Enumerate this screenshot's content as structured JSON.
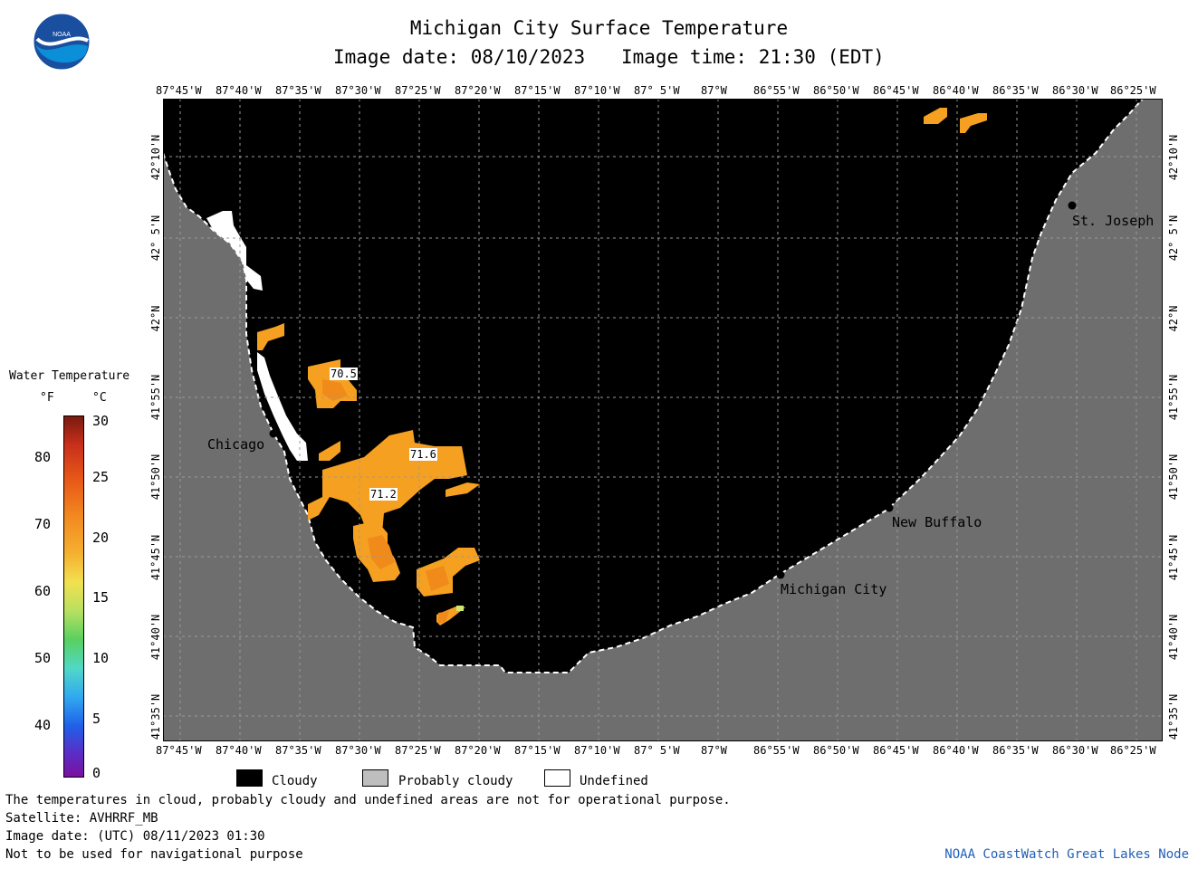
{
  "header": {
    "title": "Michigan City Surface Temperature",
    "image_date": "Image date: 08/10/2023",
    "image_time": "Image time: 21:30 (EDT)"
  },
  "logo": {
    "text": "NOAA"
  },
  "map": {
    "lon_ticks": [
      "87°45'W",
      "87°40'W",
      "87°35'W",
      "87°30'W",
      "87°25'W",
      "87°20'W",
      "87°15'W",
      "87°10'W",
      "87° 5'W",
      "87°W",
      "86°55'W",
      "86°50'W",
      "86°45'W",
      "86°40'W",
      "86°35'W",
      "86°30'W",
      "86°25'W"
    ],
    "lat_ticks": [
      "42°10'N",
      "42° 5'N",
      "42°N",
      "41°55'N",
      "41°50'N",
      "41°45'N",
      "41°40'N",
      "41°35'N"
    ],
    "places": {
      "chicago": "Chicago",
      "st_joseph": "St. Joseph",
      "new_buffalo": "New Buffalo",
      "michigan_city": "Michigan City"
    },
    "temperature_labels": {
      "t1": "70.5",
      "t2": "71.6",
      "t3": "71.2"
    }
  },
  "colorbar": {
    "title": "Water Temperature",
    "unit_f": "°F",
    "unit_c": "°C",
    "f_ticks": [
      "80",
      "70",
      "60",
      "50",
      "40"
    ],
    "c_ticks": [
      "30",
      "25",
      "20",
      "15",
      "10",
      "5",
      "0"
    ]
  },
  "legend": {
    "cloudy": "Cloudy",
    "probably_cloudy": "Probably cloudy",
    "undefined": "Undefined"
  },
  "notes": {
    "line1": "The temperatures in cloud, probably cloudy and undefined areas are not for operational purpose.",
    "line2": "Satellite: AVHRRF_MB",
    "line3": "Image date: (UTC) 08/11/2023  01:30",
    "line4": "Not to be used for navigational purpose"
  },
  "footer": {
    "credit": "NOAA CoastWatch Great Lakes Node"
  },
  "colors": {
    "cloudy": "#000000",
    "land": "#6e6e6e",
    "probably_cloudy": "#bebebe",
    "undefined": "#ffffff",
    "warm_water": "#f5a020",
    "credit_text": "#1f5fb8"
  }
}
